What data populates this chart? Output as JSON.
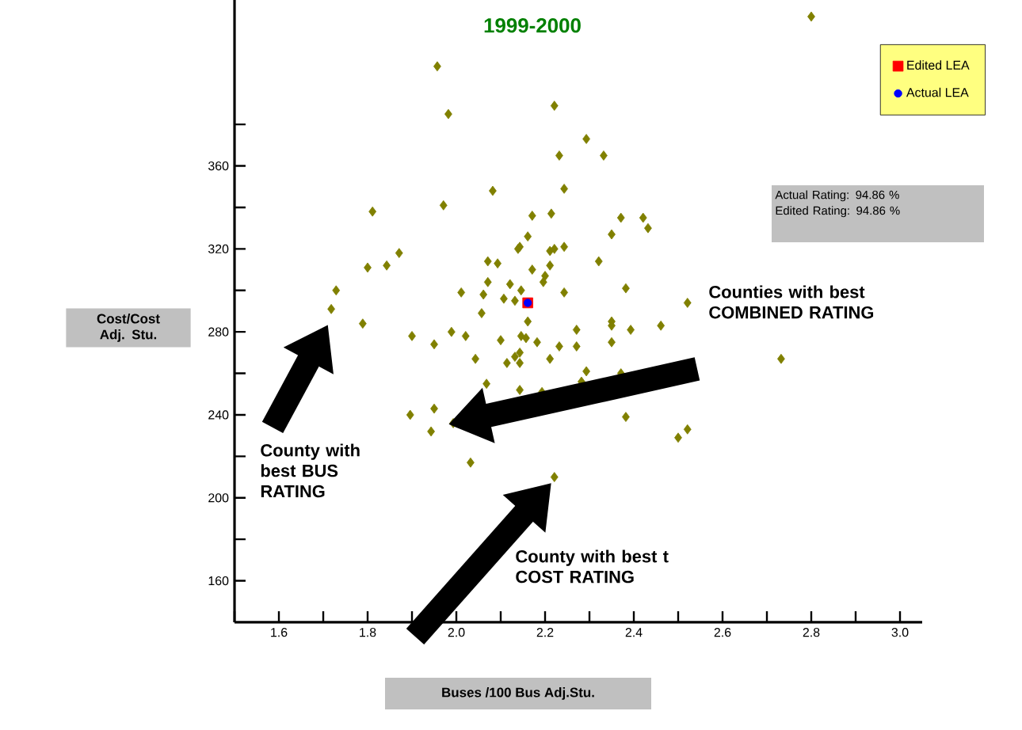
{
  "chart_data": {
    "type": "scatter",
    "title": "1999-2000",
    "xlabel": "Buses /100 Bus Adj.Stu.",
    "ylabel": "Cost/Cost Adj. Stu.",
    "xlim": [
      1.5,
      3.05
    ],
    "ylim": [
      140,
      440
    ],
    "xticks": [
      {
        "value": 1.5,
        "label": null
      },
      1.6,
      {
        "value": 1.7,
        "label": null
      },
      1.8,
      {
        "value": 1.9,
        "label": null
      },
      {
        "value": 2.0,
        "label": "2.0"
      },
      {
        "value": 2.1,
        "label": null
      },
      2.2,
      {
        "value": 2.3,
        "label": null
      },
      2.4,
      {
        "value": 2.5,
        "label": null
      },
      2.6,
      {
        "value": 2.7,
        "label": null
      },
      2.8,
      {
        "value": 2.9,
        "label": null
      },
      {
        "value": 3.0,
        "label": "3.0"
      }
    ],
    "yticks": [
      160,
      {
        "value": 180,
        "label": null
      },
      200,
      {
        "value": 220,
        "label": null
      },
      240,
      {
        "value": 260,
        "label": null
      },
      280,
      {
        "value": 300,
        "label": null
      },
      320,
      {
        "value": 340,
        "label": null
      },
      360,
      {
        "value": 380,
        "label": null
      }
    ],
    "legend": "top right",
    "grid": false,
    "series": [
      {
        "color": "#808000",
        "marker": "diamond",
        "x": [
          1.957,
          1.982,
          2.082,
          1.971,
          1.811,
          2.171,
          2.161,
          2.143,
          1.871,
          1.843,
          1.8,
          2.071,
          2.093,
          2.171,
          2.071,
          1.729,
          2.011,
          2.061,
          2.121,
          2.146,
          2.107,
          2.132,
          1.718,
          2.057,
          1.789,
          2.161,
          1.9,
          1.95,
          1.989,
          2.021,
          2.1,
          2.146,
          2.043,
          2.114,
          2.293,
          2.232,
          2.332,
          2.243,
          2.214,
          2.35,
          2.139,
          2.221,
          2.243,
          2.211,
          2.321,
          2.211,
          2.2,
          2.196,
          2.243,
          2.35,
          2.157,
          2.182,
          2.271,
          2.232,
          2.271,
          2.35,
          2.143,
          2.132,
          2.211,
          2.143,
          2.293,
          2.068,
          2.143,
          2.193,
          2.282,
          1.896,
          1.95,
          1.993,
          1.943,
          2.032,
          2.221,
          2.8,
          2.221,
          2.371,
          2.421,
          2.432,
          2.382,
          2.521,
          2.35,
          2.393,
          2.461,
          2.732,
          2.371,
          2.382,
          2.5,
          2.521
        ],
        "values": [
          408,
          385,
          348,
          341,
          338,
          336,
          326,
          321,
          318,
          312,
          311,
          314,
          313,
          310,
          304,
          300,
          299,
          298,
          303,
          300,
          296,
          295,
          291,
          289,
          284,
          285,
          278,
          274,
          280,
          278,
          276,
          278,
          267,
          265,
          373,
          365,
          365,
          349,
          337,
          327,
          320,
          320,
          321,
          319,
          314,
          312,
          307,
          304,
          299,
          285,
          277,
          275,
          281,
          273,
          273,
          275,
          270,
          268,
          267,
          265,
          261,
          255,
          252,
          251,
          256,
          240,
          243,
          236,
          232,
          217,
          210,
          432,
          389,
          335,
          335,
          330,
          301,
          294,
          283,
          281,
          283,
          267,
          260,
          239,
          229,
          233
        ]
      },
      {
        "name": "Edited LEA",
        "color": "#ff0000",
        "marker": "square",
        "x": [
          2.161
        ],
        "values": [
          294
        ]
      },
      {
        "name": "Actual LEA",
        "color": "#0000ff",
        "marker": "circle",
        "x": [
          2.161
        ],
        "values": [
          294
        ]
      }
    ],
    "annotations": [
      "Actual Rating:   94.86  %",
      "Edited Rating:   94.86  %",
      "Counties with best COMBINED RATING",
      "County with best BUS RATING",
      "County with best t COST RATING"
    ]
  }
}
